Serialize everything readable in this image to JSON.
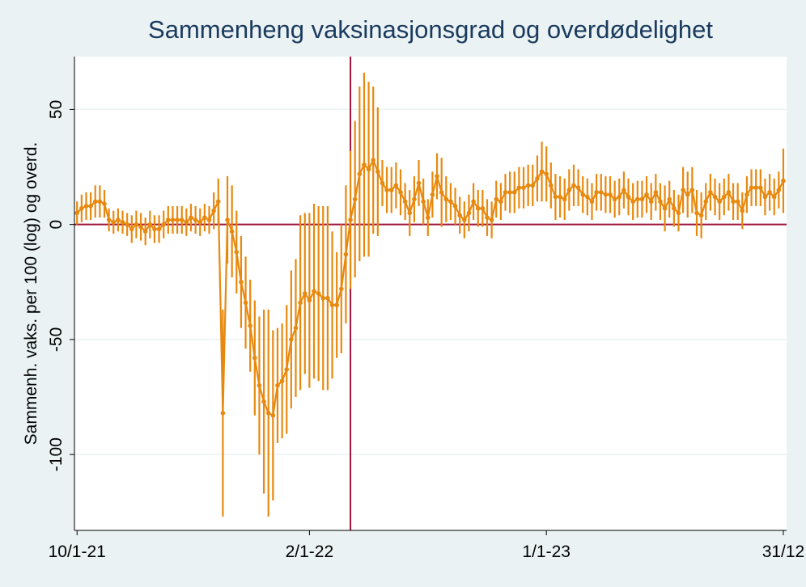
{
  "chart_data": {
    "type": "line",
    "title": "Sammenheng vaksinasjonsgrad og overdødelighet",
    "y_label": "Sammenh. vaks. per 100 (log) og overd.",
    "x": [
      "2021-01-10",
      "2021-01-17",
      "2021-01-24",
      "2021-01-31",
      "2021-02-07",
      "2021-02-14",
      "2021-02-21",
      "2021-02-28",
      "2021-03-07",
      "2021-03-14",
      "2021-03-21",
      "2021-03-28",
      "2021-04-04",
      "2021-04-11",
      "2021-04-18",
      "2021-04-25",
      "2021-05-02",
      "2021-05-09",
      "2021-05-16",
      "2021-05-23",
      "2021-05-30",
      "2021-06-06",
      "2021-06-13",
      "2021-06-20",
      "2021-06-27",
      "2021-07-04",
      "2021-07-11",
      "2021-07-18",
      "2021-07-25",
      "2021-08-01",
      "2021-08-08",
      "2021-08-15",
      "2021-08-22",
      "2021-08-29",
      "2021-09-05",
      "2021-09-12",
      "2021-09-19",
      "2021-09-26",
      "2021-10-03",
      "2021-10-10",
      "2021-10-17",
      "2021-10-24",
      "2021-10-31",
      "2021-11-07",
      "2021-11-14",
      "2021-11-21",
      "2021-11-28",
      "2021-12-05",
      "2021-12-12",
      "2021-12-19",
      "2021-12-26",
      "2022-01-02",
      "2022-01-09",
      "2022-01-16",
      "2022-01-23",
      "2022-01-30",
      "2022-02-06",
      "2022-02-13",
      "2022-02-20",
      "2022-02-27",
      "2022-03-06",
      "2022-03-13",
      "2022-03-20",
      "2022-03-27",
      "2022-04-03",
      "2022-04-10",
      "2022-04-17",
      "2022-04-24",
      "2022-05-01",
      "2022-05-08",
      "2022-05-15",
      "2022-05-22",
      "2022-05-29",
      "2022-06-05",
      "2022-06-12",
      "2022-06-19",
      "2022-06-26",
      "2022-07-03",
      "2022-07-10",
      "2022-07-17",
      "2022-07-24",
      "2022-07-31",
      "2022-08-07",
      "2022-08-14",
      "2022-08-21",
      "2022-08-28",
      "2022-09-04",
      "2022-09-11",
      "2022-09-18",
      "2022-09-25",
      "2022-10-02",
      "2022-10-09",
      "2022-10-16",
      "2022-10-23",
      "2022-10-30",
      "2022-11-06",
      "2022-11-13",
      "2022-11-20",
      "2022-11-27",
      "2022-12-04",
      "2022-12-11",
      "2022-12-18",
      "2022-12-25",
      "2023-01-01",
      "2023-01-08",
      "2023-01-15",
      "2023-01-22",
      "2023-01-29",
      "2023-02-05",
      "2023-02-12",
      "2023-02-19",
      "2023-02-26",
      "2023-03-05",
      "2023-03-12",
      "2023-03-19",
      "2023-03-26",
      "2023-04-02",
      "2023-04-09",
      "2023-04-16",
      "2023-04-23",
      "2023-04-30",
      "2023-05-07",
      "2023-05-14",
      "2023-05-21",
      "2023-05-28",
      "2023-06-04",
      "2023-06-11",
      "2023-06-18",
      "2023-06-25",
      "2023-07-02",
      "2023-07-09",
      "2023-07-16",
      "2023-07-23",
      "2023-07-30",
      "2023-08-06",
      "2023-08-13",
      "2023-08-20",
      "2023-08-27",
      "2023-09-03",
      "2023-09-10",
      "2023-09-17",
      "2023-09-24",
      "2023-10-01",
      "2023-10-08",
      "2023-10-15",
      "2023-10-22",
      "2023-10-29",
      "2023-11-05",
      "2023-11-12",
      "2023-11-19",
      "2023-11-26",
      "2023-12-03",
      "2023-12-10",
      "2023-12-17",
      "2023-12-24",
      "2023-12-31"
    ],
    "values": [
      5,
      7,
      8,
      8,
      10,
      10,
      9,
      2,
      1,
      2,
      1,
      0,
      -2,
      0,
      -1,
      -3,
      0,
      -2,
      -2,
      0,
      2,
      2,
      2,
      2,
      1,
      3,
      2,
      1,
      3,
      2,
      6,
      10,
      -82,
      2,
      -3,
      -12,
      -25,
      -34,
      -44,
      -58,
      -70,
      -77,
      -82,
      -83,
      -70,
      -68,
      -63,
      -50,
      -45,
      -34,
      -30,
      -33,
      -29,
      -30,
      -32,
      -32,
      -35,
      -35,
      -28,
      -13,
      2,
      11,
      22,
      26,
      24,
      28,
      23,
      18,
      15,
      15,
      17,
      14,
      10,
      5,
      11,
      18,
      10,
      3,
      13,
      21,
      14,
      11,
      10,
      8,
      4,
      2,
      5,
      10,
      7,
      7,
      3,
      2,
      11,
      10,
      14,
      14,
      14,
      16,
      16,
      17,
      17,
      20,
      23,
      22,
      17,
      12,
      12,
      11,
      15,
      17,
      16,
      13,
      12,
      10,
      14,
      14,
      13,
      13,
      11,
      12,
      15,
      12,
      10,
      11,
      11,
      13,
      10,
      14,
      10,
      7,
      11,
      7,
      5,
      15,
      13,
      15,
      5,
      4,
      10,
      14,
      12,
      10,
      12,
      14,
      10,
      10,
      6,
      13,
      16,
      16,
      16,
      12,
      14,
      12,
      15,
      19
    ],
    "errors": [
      5,
      6,
      6,
      6,
      7,
      7,
      6,
      5,
      5,
      5,
      5,
      5,
      6,
      6,
      6,
      6,
      6,
      6,
      6,
      6,
      6,
      6,
      6,
      6,
      6,
      6,
      6,
      6,
      6,
      6,
      8,
      10,
      45,
      19,
      20,
      18,
      20,
      20,
      20,
      25,
      30,
      40,
      45,
      37,
      25,
      25,
      28,
      30,
      30,
      38,
      35,
      38,
      38,
      38,
      40,
      40,
      32,
      23,
      28,
      30,
      30,
      34,
      38,
      40,
      38,
      32,
      28,
      10,
      10,
      10,
      10,
      10,
      8,
      10,
      10,
      10,
      10,
      8,
      10,
      10,
      15,
      10,
      8,
      8,
      8,
      8,
      8,
      8,
      8,
      8,
      8,
      8,
      8,
      8,
      8,
      9,
      9,
      9,
      9,
      9,
      9,
      10,
      13,
      12,
      10,
      10,
      9,
      9,
      9,
      9,
      8,
      8,
      8,
      8,
      8,
      8,
      8,
      8,
      8,
      8,
      8,
      8,
      8,
      8,
      8,
      8,
      8,
      8,
      8,
      10,
      8,
      8,
      8,
      10,
      10,
      10,
      10,
      10,
      8,
      8,
      8,
      8,
      8,
      8,
      8,
      8,
      8,
      8,
      8,
      8,
      8,
      8,
      8,
      8,
      8,
      14
    ],
    "color": "#e8890f",
    "xlim": [
      "2021-01-06",
      "2024-01-05"
    ],
    "xticks": [
      {
        "value": "2021-01-10",
        "label": "10/1-21"
      },
      {
        "value": "2022-01-02",
        "label": "2/1-22"
      },
      {
        "value": "2023-01-01",
        "label": "1/1-23"
      },
      {
        "value": "2023-12-31",
        "label": "31/12"
      }
    ],
    "ylim": [
      -133,
      73
    ],
    "yticks": [
      -100,
      -50,
      0,
      50
    ],
    "grid": true,
    "reference_lines": {
      "y": 0,
      "x": "2022-03-06",
      "color": "#a0153e"
    }
  }
}
